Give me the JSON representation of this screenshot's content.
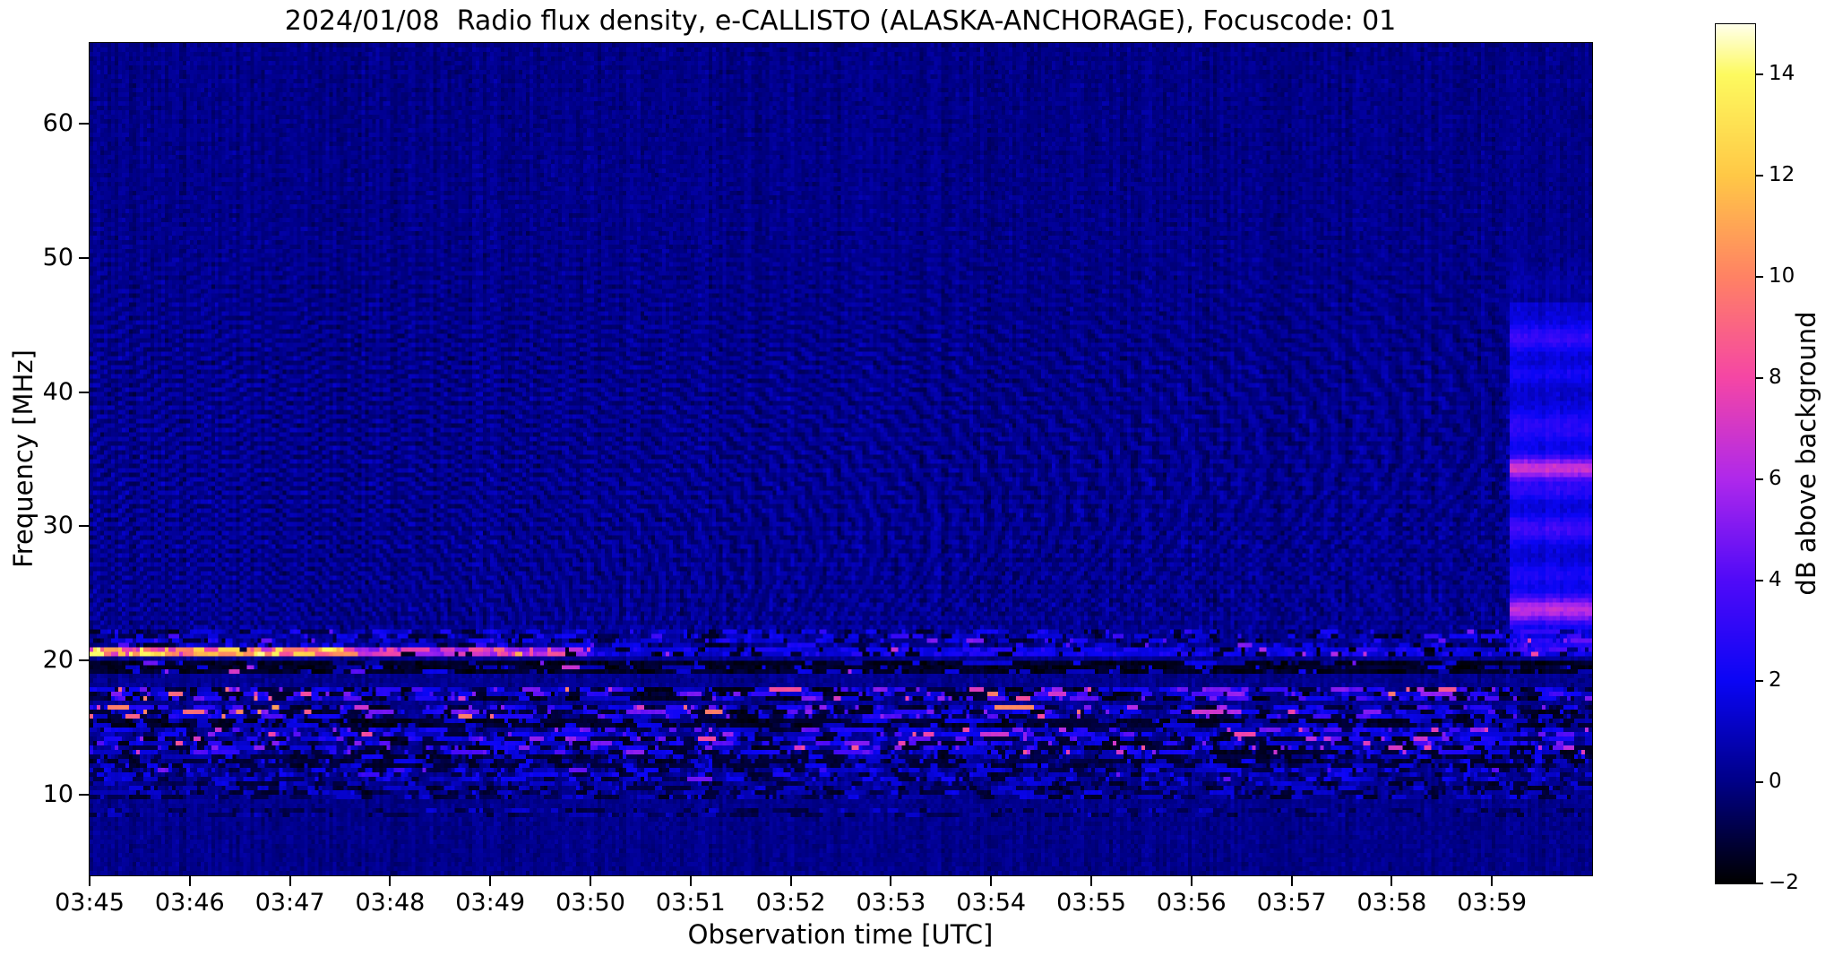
{
  "chart_data": {
    "type": "heatmap",
    "subtype": "radio-spectrogram",
    "title": "2024/01/08  Radio flux density, e-CALLISTO (ALASKA-ANCHORAGE), Focuscode: 01",
    "date": "2024/01/08",
    "instrument": "e-CALLISTO",
    "station": "ALASKA-ANCHORAGE",
    "focuscode": "01",
    "xlabel": "Observation time [UTC]",
    "ylabel": "Frequency [MHz]",
    "x_range": [
      "03:45:00",
      "04:00:00"
    ],
    "x_span_min": 15,
    "x_ticks": [
      "03:45",
      "03:46",
      "03:47",
      "03:48",
      "03:49",
      "03:50",
      "03:51",
      "03:52",
      "03:53",
      "03:54",
      "03:55",
      "03:56",
      "03:57",
      "03:58",
      "03:59"
    ],
    "y_range_mhz": [
      4,
      66
    ],
    "y_ticks": [
      10,
      20,
      30,
      40,
      50,
      60
    ],
    "grid_on": false,
    "colorbar": {
      "label": "dB above background",
      "range": [
        -2,
        15
      ],
      "ticks": [
        {
          "label": "14",
          "value": 14
        },
        {
          "label": "12",
          "value": 12
        },
        {
          "label": "10",
          "value": 10
        },
        {
          "label": "8",
          "value": 8
        },
        {
          "label": "6",
          "value": 6
        },
        {
          "label": "4",
          "value": 4
        },
        {
          "label": "2",
          "value": 2
        },
        {
          "label": "0",
          "value": 0
        },
        {
          "label": "−2",
          "value": -2
        }
      ]
    },
    "features": [
      "Quasi-uniform dark blue background near 0 dB with fine vertical noise striping",
      "Wavy ionospheric interference ripples between ~21 and ~55 MHz, strongest 22-45 MHz, period lengthening with frequency",
      "Bright emission line at ~20.6 MHz: intense 6-15 dB (yellow/orange/white) 03:45-03:47.6, pink 03:47.6-03:49.9, faint blue dashes with sparse pink dots afterwards",
      "Dark band 18.9-20.1 MHz across full duration",
      "Speckled RFI bands near 17.4 and 16.2 MHz with pink/orange bursts, brightest before 03:48",
      "Speckled RFI bands near 14.6 and 13.5 MHz with pink bursts increasing toward 03:56-04:00",
      "Dark lanes near 15.4 and 12.5 MHz, fainter dash bands near 11.5 and 10.2 MHz",
      "Block of enhanced blue emission 21-47 MHz after ~03:59:10 with horizontal stripes; pink-magenta stripes near 34.3 and 23.8 MHz"
    ],
    "render": {
      "grid": [
        420,
        186
      ],
      "noise": {
        "base": 0.0,
        "sigma": 0.5,
        "col_var": 0.55,
        "f_bias": [
          [
            66,
            0.0
          ],
          [
            50,
            0.05
          ],
          [
            35,
            0.1
          ],
          [
            25,
            0.15
          ],
          [
            15,
            0.1
          ],
          [
            4,
            0.05
          ]
        ]
      },
      "colormap_stops": [
        [
          -2,
          0,
          0,
          0
        ],
        [
          0,
          0,
          0,
          135
        ],
        [
          2,
          10,
          5,
          245
        ],
        [
          4,
          80,
          10,
          248
        ],
        [
          6,
          175,
          40,
          235
        ],
        [
          8,
          245,
          70,
          165
        ],
        [
          10,
          255,
          130,
          100
        ],
        [
          12,
          255,
          200,
          70
        ],
        [
          14,
          253,
          250,
          95
        ],
        [
          15,
          255,
          255,
          235
        ]
      ],
      "wave": {
        "f_spacing": 0.78,
        "period_min_base": 0.38,
        "period_slope": 0.022,
        "wobble": 0.72,
        "tilt": 0.55,
        "phase": 1.3,
        "left_boost": 0.25,
        "amp_profile": [
          [
            20.6,
            0
          ],
          [
            22.5,
            0.5
          ],
          [
            30,
            0.55
          ],
          [
            42,
            0.5
          ],
          [
            50,
            0.22
          ],
          [
            58,
            0.12
          ],
          [
            66,
            0.1
          ]
        ]
      },
      "bands": [
        {
          "name": "blue-dashes-21.6",
          "f": [
            21.15,
            22.25
          ],
          "persist": 0.5,
          "levels": [
            {
              "p": 0.2,
              "v": [
                -1.6,
                -0.8
              ]
            },
            {
              "p": 0.34,
              "v": [
                0.8,
                2.6
              ]
            },
            {
              "p": 0.03,
              "v": [
                3,
                5
              ]
            }
          ]
        },
        {
          "name": "emission-line-20.6",
          "f": [
            20.25,
            20.95
          ],
          "persist": 0.5,
          "tsegs": [
            {
              "t": [
                0,
                2.6
              ],
              "v": [
                6.5,
                14.5
              ],
              "black_p": 0.04
            },
            {
              "t": [
                2.6,
                4.9
              ],
              "v": [
                4.5,
                9.0
              ],
              "black_p": 0.1,
              "hot_p": 0.08,
              "hot_v": [
                9,
                12
              ]
            },
            {
              "t": [
                4.9,
                15
              ],
              "v": [
                1.0,
                2.8
              ],
              "black_p": 0.18,
              "hot_p": 0.05,
              "hot_v": [
                5,
                8
              ]
            }
          ]
        },
        {
          "name": "black-band-19.5",
          "f": [
            18.9,
            20.1
          ],
          "persist": 0.6,
          "levels": [
            {
              "p": 0.78,
              "v": [
                -1.9,
                -1.1
              ]
            },
            {
              "p": 0.16,
              "v": [
                0.4,
                2.0
              ]
            },
            {
              "p": 0.01,
              "v": [
                4,
                7
              ]
            }
          ]
        },
        {
          "name": "speckle-17.4",
          "f": [
            16.85,
            18.05
          ],
          "persist": 0.55,
          "hot_time": "left",
          "levels": [
            {
              "p": 0.36,
              "v": [
                -1.8,
                -0.9
              ]
            },
            {
              "p": 0.34,
              "v": [
                0.8,
                2.8
              ]
            },
            {
              "p": 0.14,
              "v": [
                3,
                5.5
              ]
            },
            {
              "p": 0.045,
              "v": [
                6,
                10
              ]
            }
          ]
        },
        {
          "name": "speckle-16.2",
          "f": [
            15.75,
            16.6
          ],
          "persist": 0.55,
          "hot_time": "left",
          "levels": [
            {
              "p": 0.28,
              "v": [
                -1.7,
                -0.8
              ]
            },
            {
              "p": 0.38,
              "v": [
                0.8,
                2.8
              ]
            },
            {
              "p": 0.12,
              "v": [
                3,
                5.5
              ]
            },
            {
              "p": 0.05,
              "v": [
                6,
                11
              ]
            }
          ]
        },
        {
          "name": "black-band-15.4",
          "f": [
            15.05,
            15.7
          ],
          "persist": 0.6,
          "levels": [
            {
              "p": 0.66,
              "v": [
                -1.8,
                -1.0
              ]
            },
            {
              "p": 0.22,
              "v": [
                0.5,
                2.0
              ]
            }
          ]
        },
        {
          "name": "band-14.6",
          "f": [
            14.25,
            15.0
          ],
          "persist": 0.55,
          "hot_time": "right",
          "levels": [
            {
              "p": 0.2,
              "v": [
                -1.5,
                -0.7
              ]
            },
            {
              "p": 0.46,
              "v": [
                0.8,
                2.6
              ]
            },
            {
              "p": 0.09,
              "v": [
                3,
                5.5
              ]
            },
            {
              "p": 0.04,
              "v": [
                6,
                8.5
              ]
            }
          ]
        },
        {
          "name": "speckle-13.5",
          "f": [
            12.95,
            14.2
          ],
          "persist": 0.55,
          "hot_time": "right",
          "levels": [
            {
              "p": 0.33,
              "v": [
                -1.7,
                -0.9
              ]
            },
            {
              "p": 0.36,
              "v": [
                0.8,
                2.8
              ]
            },
            {
              "p": 0.1,
              "v": [
                3,
                5.5
              ]
            },
            {
              "p": 0.035,
              "v": [
                6,
                8.5
              ]
            }
          ]
        },
        {
          "name": "dark-12.5",
          "f": [
            12.15,
            12.9
          ],
          "persist": 0.55,
          "levels": [
            {
              "p": 0.52,
              "v": [
                -1.6,
                -0.8
              ]
            },
            {
              "p": 0.28,
              "v": [
                0.5,
                2.2
              ]
            }
          ]
        },
        {
          "name": "band-11.5",
          "f": [
            10.9,
            12.1
          ],
          "persist": 0.5,
          "levels": [
            {
              "p": 0.24,
              "v": [
                -1.4,
                -0.6
              ]
            },
            {
              "p": 0.4,
              "v": [
                0.5,
                2.4
              ]
            },
            {
              "p": 0.02,
              "v": [
                3,
                5
              ]
            }
          ]
        },
        {
          "name": "zigzag-10.2",
          "f": [
            9.6,
            10.85
          ],
          "persist": 0.5,
          "levels": [
            {
              "p": 0.33,
              "v": [
                -1.5,
                -0.7
              ]
            },
            {
              "p": 0.3,
              "v": [
                0.4,
                1.8
              ]
            }
          ]
        },
        {
          "name": "faint-8.5",
          "f": [
            8.2,
            8.95
          ],
          "persist": 0.5,
          "levels": [
            {
              "p": 0.28,
              "v": [
                -1.2,
                -0.5
              ]
            },
            {
              "p": 0.15,
              "v": [
                0.3,
                1.5
              ]
            }
          ]
        }
      ],
      "right_column": {
        "t_start_min": 14.17,
        "f": [
          21.5,
          46.5
        ],
        "base_add": 1.1,
        "stripes": [
          {
            "f": 48.0,
            "w": 2.5,
            "add": 0.4
          },
          {
            "f": 44.0,
            "w": 1.4,
            "add": 2.0
          },
          {
            "f": 41.3,
            "w": 1.0,
            "add": 1.0
          },
          {
            "f": 37.4,
            "w": 1.7,
            "add": 1.7
          },
          {
            "f": 34.3,
            "w": 1.2,
            "add": 5.6
          },
          {
            "f": 32.6,
            "w": 1.0,
            "add": 1.5
          },
          {
            "f": 29.8,
            "w": 1.4,
            "add": 2.2
          },
          {
            "f": 26.4,
            "w": 1.1,
            "add": 1.2
          },
          {
            "f": 23.8,
            "w": 1.4,
            "add": 5.2
          },
          {
            "f": 21.2,
            "w": 0.6,
            "add": 2.6
          }
        ]
      }
    }
  }
}
